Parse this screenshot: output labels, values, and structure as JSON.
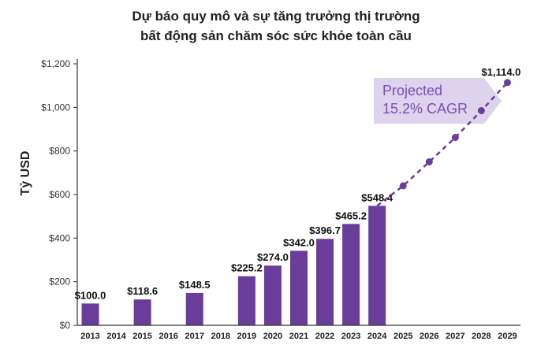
{
  "chart_data": {
    "type": "bar",
    "title_line1": "Dự báo quy mô và sự tăng trưởng thị trường",
    "title_line2": "bất động sản chăm sóc sức khỏe toàn cầu",
    "ylabel": "Tỷ USD",
    "xlabel": "",
    "ylim": [
      0,
      1200
    ],
    "yticks": [
      "$0",
      "$200",
      "$400",
      "$600",
      "$800",
      "$1,000",
      "$1,200"
    ],
    "ytick_values": [
      0,
      200,
      400,
      600,
      800,
      1000,
      1200
    ],
    "categories": [
      "2013",
      "2014",
      "2015",
      "2016",
      "2017",
      "2018",
      "2019",
      "2020",
      "2021",
      "2022",
      "2023",
      "2024",
      "2025",
      "2026",
      "2027",
      "2028",
      "2029"
    ],
    "bars": [
      {
        "year": "2013",
        "value": 100.0,
        "label": "$100.0"
      },
      {
        "year": "2015",
        "value": 118.6,
        "label": "$118.6"
      },
      {
        "year": "2017",
        "value": 148.5,
        "label": "$148.5"
      },
      {
        "year": "2019",
        "value": 225.2,
        "label": "$225.2"
      },
      {
        "year": "2020",
        "value": 274.0,
        "label": "$274.0"
      },
      {
        "year": "2021",
        "value": 342.0,
        "label": "$342.0"
      },
      {
        "year": "2022",
        "value": 396.7,
        "label": "$396.7"
      },
      {
        "year": "2023",
        "value": 465.2,
        "label": "$465.2"
      },
      {
        "year": "2024",
        "value": 548.4,
        "label": "$548.4"
      }
    ],
    "projection": {
      "x": [
        "2024",
        "2025",
        "2026",
        "2027",
        "2028",
        "2029"
      ],
      "values": [
        548.4,
        640,
        750,
        862,
        985,
        1114.0
      ],
      "end_label": "$1,114.0",
      "annotation_line1": "Projected",
      "annotation_line2": "15.2% CAGR"
    },
    "grid": false,
    "colors": {
      "bar": "#6a3d9a",
      "projection": "#6a3d9a",
      "annotation_bg": "#ddd3ec",
      "annotation_text": "#7a4fb5",
      "axis": "#333333"
    }
  }
}
